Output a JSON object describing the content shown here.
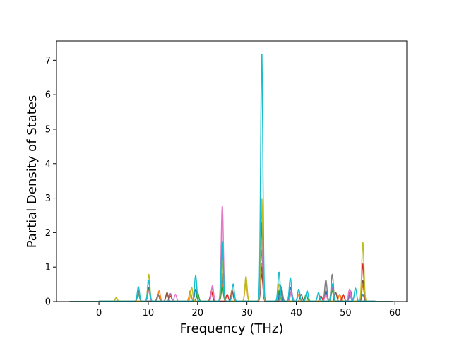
{
  "chart_data": {
    "type": "line",
    "title": "",
    "xlabel": "Frequency (THz)",
    "ylabel": "Partial Density of States",
    "xlim": [
      -8.6,
      62.4
    ],
    "ylim": [
      0,
      7.56
    ],
    "xticks": [
      0,
      10,
      20,
      30,
      40,
      50,
      60
    ],
    "yticks": [
      0,
      1,
      2,
      3,
      4,
      5,
      6,
      7
    ],
    "grid": false,
    "legend": "none",
    "frequency_range": [
      -5.9,
      59.6
    ],
    "series": [
      {
        "color": "#1f77b4",
        "peaks": [
          [
            8,
            0.3
          ],
          [
            10.1,
            0.4
          ],
          [
            19.6,
            0.35
          ],
          [
            25,
            0.7
          ],
          [
            33,
            2.3
          ],
          [
            36.8,
            0.45
          ],
          [
            38.8,
            0.4
          ],
          [
            46,
            0.3
          ],
          [
            50.8,
            0.25
          ],
          [
            53.5,
            0.2
          ]
        ]
      },
      {
        "color": "#ff7f0e",
        "peaks": [
          [
            3.5,
            0.08
          ],
          [
            12.2,
            0.3
          ],
          [
            13.8,
            0.25
          ],
          [
            18.5,
            0.3
          ],
          [
            25,
            0.5
          ],
          [
            27,
            0.35
          ],
          [
            29.8,
            0.55
          ],
          [
            33,
            1.1
          ],
          [
            40.5,
            0.2
          ],
          [
            48.8,
            0.2
          ],
          [
            53.5,
            0.45
          ]
        ]
      },
      {
        "color": "#2ca02c",
        "peaks": [
          [
            8,
            0.2
          ],
          [
            10.1,
            0.35
          ],
          [
            20,
            0.25
          ],
          [
            25,
            0.4
          ],
          [
            33,
            2.2
          ],
          [
            36.5,
            0.3
          ],
          [
            42,
            0.2
          ],
          [
            47.3,
            0.3
          ]
        ]
      },
      {
        "color": "#d62728",
        "peaks": [
          [
            12,
            0.2
          ],
          [
            14.5,
            0.15
          ],
          [
            22.8,
            0.3
          ],
          [
            26,
            0.2
          ],
          [
            33,
            0.8
          ],
          [
            45,
            0.15
          ],
          [
            49.5,
            0.2
          ],
          [
            53.5,
            1.08
          ]
        ]
      },
      {
        "color": "#9467bd",
        "peaks": [
          [
            14.5,
            0.22
          ],
          [
            23,
            0.4
          ],
          [
            25,
            1.5
          ],
          [
            33,
            1.5
          ],
          [
            39,
            0.3
          ],
          [
            47.3,
            0.4
          ],
          [
            51,
            0.3
          ]
        ]
      },
      {
        "color": "#8c564b",
        "peaks": [
          [
            13.8,
            0.25
          ],
          [
            27,
            0.3
          ],
          [
            33,
            1.0
          ],
          [
            41,
            0.2
          ],
          [
            48,
            0.25
          ],
          [
            53.5,
            0.6
          ]
        ]
      },
      {
        "color": "#e377c2",
        "peaks": [
          [
            10.1,
            0.3
          ],
          [
            15.5,
            0.2
          ],
          [
            23,
            0.45
          ],
          [
            25,
            2.78
          ],
          [
            33,
            1.8
          ],
          [
            39,
            0.25
          ],
          [
            46,
            0.2
          ],
          [
            50.8,
            0.35
          ]
        ]
      },
      {
        "color": "#7f7f7f",
        "peaks": [
          [
            8,
            0.25
          ],
          [
            12,
            0.2
          ],
          [
            25,
            0.8
          ],
          [
            33,
            2.75
          ],
          [
            37,
            0.4
          ],
          [
            46,
            0.62
          ],
          [
            47.3,
            0.78
          ]
        ]
      },
      {
        "color": "#bcbd22",
        "peaks": [
          [
            3.5,
            0.1
          ],
          [
            10.1,
            0.78
          ],
          [
            18.8,
            0.4
          ],
          [
            25,
            1.2
          ],
          [
            29.8,
            0.72
          ],
          [
            33,
            3.0
          ],
          [
            36.5,
            0.5
          ],
          [
            53.5,
            1.72
          ]
        ]
      },
      {
        "color": "#17becf",
        "peaks": [
          [
            8,
            0.42
          ],
          [
            10.1,
            0.6
          ],
          [
            19.6,
            0.75
          ],
          [
            25,
            1.75
          ],
          [
            27.2,
            0.5
          ],
          [
            33,
            7.25
          ],
          [
            36.5,
            0.85
          ],
          [
            38.8,
            0.68
          ],
          [
            40.5,
            0.35
          ],
          [
            42.2,
            0.3
          ],
          [
            44.5,
            0.25
          ],
          [
            47.3,
            0.5
          ],
          [
            52,
            0.38
          ]
        ]
      }
    ]
  }
}
